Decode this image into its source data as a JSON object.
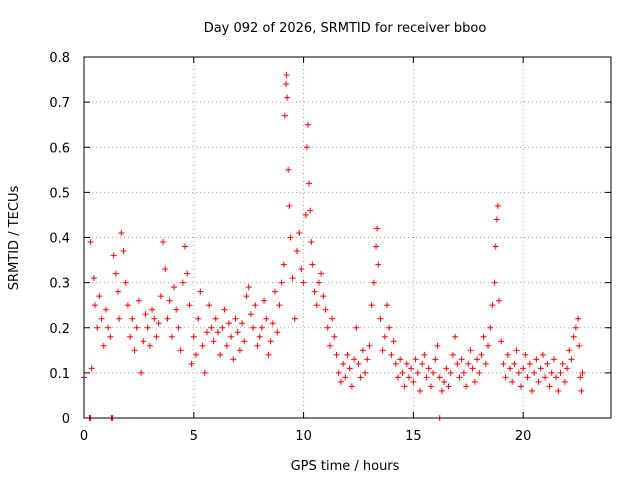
{
  "chart_data": {
    "type": "scatter",
    "title": "Day 092 of 2026, SRMTID for receiver bboo",
    "xlabel": "GPS time / hours",
    "ylabel": "SRMTID / TECUs",
    "xlim": [
      0,
      24
    ],
    "ylim": [
      0,
      0.8
    ],
    "x_ticks": [
      0,
      5,
      10,
      15,
      20
    ],
    "x_tick_labels": [
      "0",
      "5",
      "10",
      "15",
      "20"
    ],
    "y_ticks": [
      0,
      0.1,
      0.2,
      0.3,
      0.4,
      0.5,
      0.6,
      0.7,
      0.8
    ],
    "y_tick_labels": [
      "0",
      "0.1",
      "0.2",
      "0.3",
      "0.4",
      "0.5",
      "0.6",
      "0.7",
      "0.8"
    ],
    "grid": true,
    "marker": "+",
    "series": [
      {
        "name": "SRMTID",
        "color": "#ff0000",
        "points": [
          [
            0.0,
            0.09
          ],
          [
            0.3,
            0.39
          ],
          [
            0.35,
            0.11
          ],
          [
            0.45,
            0.31
          ],
          [
            0.5,
            0.25
          ],
          [
            0.6,
            0.2
          ],
          [
            0.7,
            0.27
          ],
          [
            0.8,
            0.22
          ],
          [
            0.9,
            0.16
          ],
          [
            1.0,
            0.24
          ],
          [
            1.1,
            0.2
          ],
          [
            1.2,
            0.18
          ],
          [
            1.35,
            0.36
          ],
          [
            1.45,
            0.32
          ],
          [
            1.55,
            0.28
          ],
          [
            1.6,
            0.22
          ],
          [
            1.7,
            0.41
          ],
          [
            1.8,
            0.37
          ],
          [
            1.9,
            0.3
          ],
          [
            2.0,
            0.25
          ],
          [
            2.1,
            0.18
          ],
          [
            2.2,
            0.22
          ],
          [
            2.3,
            0.15
          ],
          [
            2.4,
            0.2
          ],
          [
            2.5,
            0.26
          ],
          [
            2.6,
            0.1
          ],
          [
            2.7,
            0.17
          ],
          [
            2.8,
            0.23
          ],
          [
            2.9,
            0.2
          ],
          [
            3.0,
            0.16
          ],
          [
            3.1,
            0.24
          ],
          [
            3.2,
            0.22
          ],
          [
            3.3,
            0.18
          ],
          [
            3.4,
            0.21
          ],
          [
            3.5,
            0.27
          ],
          [
            3.6,
            0.39
          ],
          [
            3.7,
            0.33
          ],
          [
            3.8,
            0.22
          ],
          [
            3.9,
            0.26
          ],
          [
            4.0,
            0.18
          ],
          [
            4.1,
            0.29
          ],
          [
            4.2,
            0.24
          ],
          [
            4.3,
            0.2
          ],
          [
            4.4,
            0.15
          ],
          [
            4.5,
            0.3
          ],
          [
            4.6,
            0.38
          ],
          [
            4.7,
            0.32
          ],
          [
            4.8,
            0.25
          ],
          [
            4.9,
            0.12
          ],
          [
            5.0,
            0.18
          ],
          [
            5.1,
            0.14
          ],
          [
            5.2,
            0.22
          ],
          [
            5.3,
            0.28
          ],
          [
            5.4,
            0.16
          ],
          [
            5.5,
            0.1
          ],
          [
            5.6,
            0.19
          ],
          [
            5.7,
            0.25
          ],
          [
            5.8,
            0.2
          ],
          [
            5.9,
            0.17
          ],
          [
            6.0,
            0.22
          ],
          [
            6.1,
            0.19
          ],
          [
            6.2,
            0.14
          ],
          [
            6.3,
            0.2
          ],
          [
            6.4,
            0.24
          ],
          [
            6.5,
            0.16
          ],
          [
            6.6,
            0.21
          ],
          [
            6.7,
            0.18
          ],
          [
            6.8,
            0.13
          ],
          [
            6.9,
            0.22
          ],
          [
            7.0,
            0.19
          ],
          [
            7.1,
            0.15
          ],
          [
            7.2,
            0.21
          ],
          [
            7.3,
            0.17
          ],
          [
            7.4,
            0.27
          ],
          [
            7.5,
            0.29
          ],
          [
            7.6,
            0.23
          ],
          [
            7.7,
            0.2
          ],
          [
            7.8,
            0.25
          ],
          [
            7.9,
            0.16
          ],
          [
            8.0,
            0.18
          ],
          [
            8.1,
            0.2
          ],
          [
            8.2,
            0.26
          ],
          [
            8.3,
            0.22
          ],
          [
            8.4,
            0.14
          ],
          [
            8.5,
            0.17
          ],
          [
            8.6,
            0.21
          ],
          [
            8.7,
            0.28
          ],
          [
            8.8,
            0.19
          ],
          [
            8.9,
            0.25
          ],
          [
            9.0,
            0.3
          ],
          [
            9.1,
            0.34
          ],
          [
            9.15,
            0.67
          ],
          [
            9.2,
            0.74
          ],
          [
            9.22,
            0.76
          ],
          [
            9.25,
            0.71
          ],
          [
            9.3,
            0.55
          ],
          [
            9.35,
            0.47
          ],
          [
            9.4,
            0.4
          ],
          [
            9.5,
            0.31
          ],
          [
            9.6,
            0.22
          ],
          [
            9.7,
            0.37
          ],
          [
            9.8,
            0.41
          ],
          [
            9.9,
            0.33
          ],
          [
            10.0,
            0.3
          ],
          [
            10.1,
            0.45
          ],
          [
            10.15,
            0.6
          ],
          [
            10.2,
            0.65
          ],
          [
            10.25,
            0.52
          ],
          [
            10.3,
            0.46
          ],
          [
            10.35,
            0.39
          ],
          [
            10.4,
            0.34
          ],
          [
            10.5,
            0.28
          ],
          [
            10.6,
            0.25
          ],
          [
            10.7,
            0.3
          ],
          [
            10.8,
            0.32
          ],
          [
            10.9,
            0.27
          ],
          [
            11.0,
            0.24
          ],
          [
            11.1,
            0.2
          ],
          [
            11.2,
            0.16
          ],
          [
            11.3,
            0.22
          ],
          [
            11.4,
            0.18
          ],
          [
            11.5,
            0.14
          ],
          [
            11.6,
            0.1
          ],
          [
            11.7,
            0.08
          ],
          [
            11.8,
            0.12
          ],
          [
            11.9,
            0.09
          ],
          [
            12.0,
            0.14
          ],
          [
            12.1,
            0.11
          ],
          [
            12.2,
            0.07
          ],
          [
            12.3,
            0.13
          ],
          [
            12.4,
            0.2
          ],
          [
            12.5,
            0.12
          ],
          [
            12.6,
            0.09
          ],
          [
            12.7,
            0.15
          ],
          [
            12.8,
            0.1
          ],
          [
            12.9,
            0.13
          ],
          [
            13.0,
            0.16
          ],
          [
            13.1,
            0.25
          ],
          [
            13.2,
            0.3
          ],
          [
            13.3,
            0.38
          ],
          [
            13.35,
            0.42
          ],
          [
            13.4,
            0.34
          ],
          [
            13.5,
            0.22
          ],
          [
            13.6,
            0.15
          ],
          [
            13.7,
            0.18
          ],
          [
            13.8,
            0.25
          ],
          [
            13.9,
            0.2
          ],
          [
            14.0,
            0.14
          ],
          [
            14.1,
            0.17
          ],
          [
            14.2,
            0.12
          ],
          [
            14.3,
            0.09
          ],
          [
            14.4,
            0.13
          ],
          [
            14.5,
            0.1
          ],
          [
            14.6,
            0.07
          ],
          [
            14.7,
            0.12
          ],
          [
            14.8,
            0.09
          ],
          [
            14.9,
            0.11
          ],
          [
            15.0,
            0.08
          ],
          [
            15.1,
            0.13
          ],
          [
            15.2,
            0.1
          ],
          [
            15.3,
            0.06
          ],
          [
            15.4,
            0.12
          ],
          [
            15.5,
            0.14
          ],
          [
            15.6,
            0.09
          ],
          [
            15.7,
            0.11
          ],
          [
            15.8,
            0.07
          ],
          [
            15.9,
            0.1
          ],
          [
            16.0,
            0.13
          ],
          [
            16.1,
            0.16
          ],
          [
            16.2,
            0.09
          ],
          [
            16.3,
            0.06
          ],
          [
            16.4,
            0.08
          ],
          [
            16.5,
            0.11
          ],
          [
            16.6,
            0.07
          ],
          [
            16.7,
            0.1
          ],
          [
            16.8,
            0.14
          ],
          [
            16.9,
            0.18
          ],
          [
            17.0,
            0.12
          ],
          [
            17.1,
            0.09
          ],
          [
            17.2,
            0.13
          ],
          [
            17.3,
            0.1
          ],
          [
            17.4,
            0.07
          ],
          [
            17.5,
            0.12
          ],
          [
            17.6,
            0.15
          ],
          [
            17.7,
            0.11
          ],
          [
            17.8,
            0.08
          ],
          [
            17.9,
            0.13
          ],
          [
            18.0,
            0.1
          ],
          [
            18.1,
            0.14
          ],
          [
            18.2,
            0.18
          ],
          [
            18.3,
            0.12
          ],
          [
            18.4,
            0.16
          ],
          [
            18.5,
            0.2
          ],
          [
            18.6,
            0.25
          ],
          [
            18.7,
            0.3
          ],
          [
            18.75,
            0.38
          ],
          [
            18.8,
            0.44
          ],
          [
            18.85,
            0.47
          ],
          [
            18.9,
            0.26
          ],
          [
            19.0,
            0.17
          ],
          [
            19.1,
            0.12
          ],
          [
            19.2,
            0.09
          ],
          [
            19.3,
            0.14
          ],
          [
            19.4,
            0.11
          ],
          [
            19.5,
            0.08
          ],
          [
            19.6,
            0.12
          ],
          [
            19.7,
            0.15
          ],
          [
            19.8,
            0.1
          ],
          [
            19.9,
            0.07
          ],
          [
            20.0,
            0.11
          ],
          [
            20.1,
            0.14
          ],
          [
            20.2,
            0.09
          ],
          [
            20.3,
            0.12
          ],
          [
            20.4,
            0.06
          ],
          [
            20.5,
            0.1
          ],
          [
            20.6,
            0.13
          ],
          [
            20.7,
            0.08
          ],
          [
            20.8,
            0.11
          ],
          [
            20.9,
            0.14
          ],
          [
            21.0,
            0.09
          ],
          [
            21.1,
            0.12
          ],
          [
            21.2,
            0.07
          ],
          [
            21.3,
            0.1
          ],
          [
            21.4,
            0.13
          ],
          [
            21.5,
            0.09
          ],
          [
            21.6,
            0.06
          ],
          [
            21.7,
            0.1
          ],
          [
            21.8,
            0.12
          ],
          [
            21.9,
            0.08
          ],
          [
            22.0,
            0.11
          ],
          [
            22.1,
            0.15
          ],
          [
            22.2,
            0.13
          ],
          [
            22.3,
            0.18
          ],
          [
            22.4,
            0.2
          ],
          [
            22.5,
            0.22
          ],
          [
            22.55,
            0.16
          ],
          [
            22.6,
            0.09
          ],
          [
            22.65,
            0.06
          ],
          [
            22.7,
            0.1
          ],
          [
            0.25,
            0.0
          ],
          [
            0.3,
            0.0
          ],
          [
            1.25,
            0.0
          ],
          [
            1.3,
            0.0
          ],
          [
            16.2,
            0.0
          ]
        ]
      }
    ]
  }
}
